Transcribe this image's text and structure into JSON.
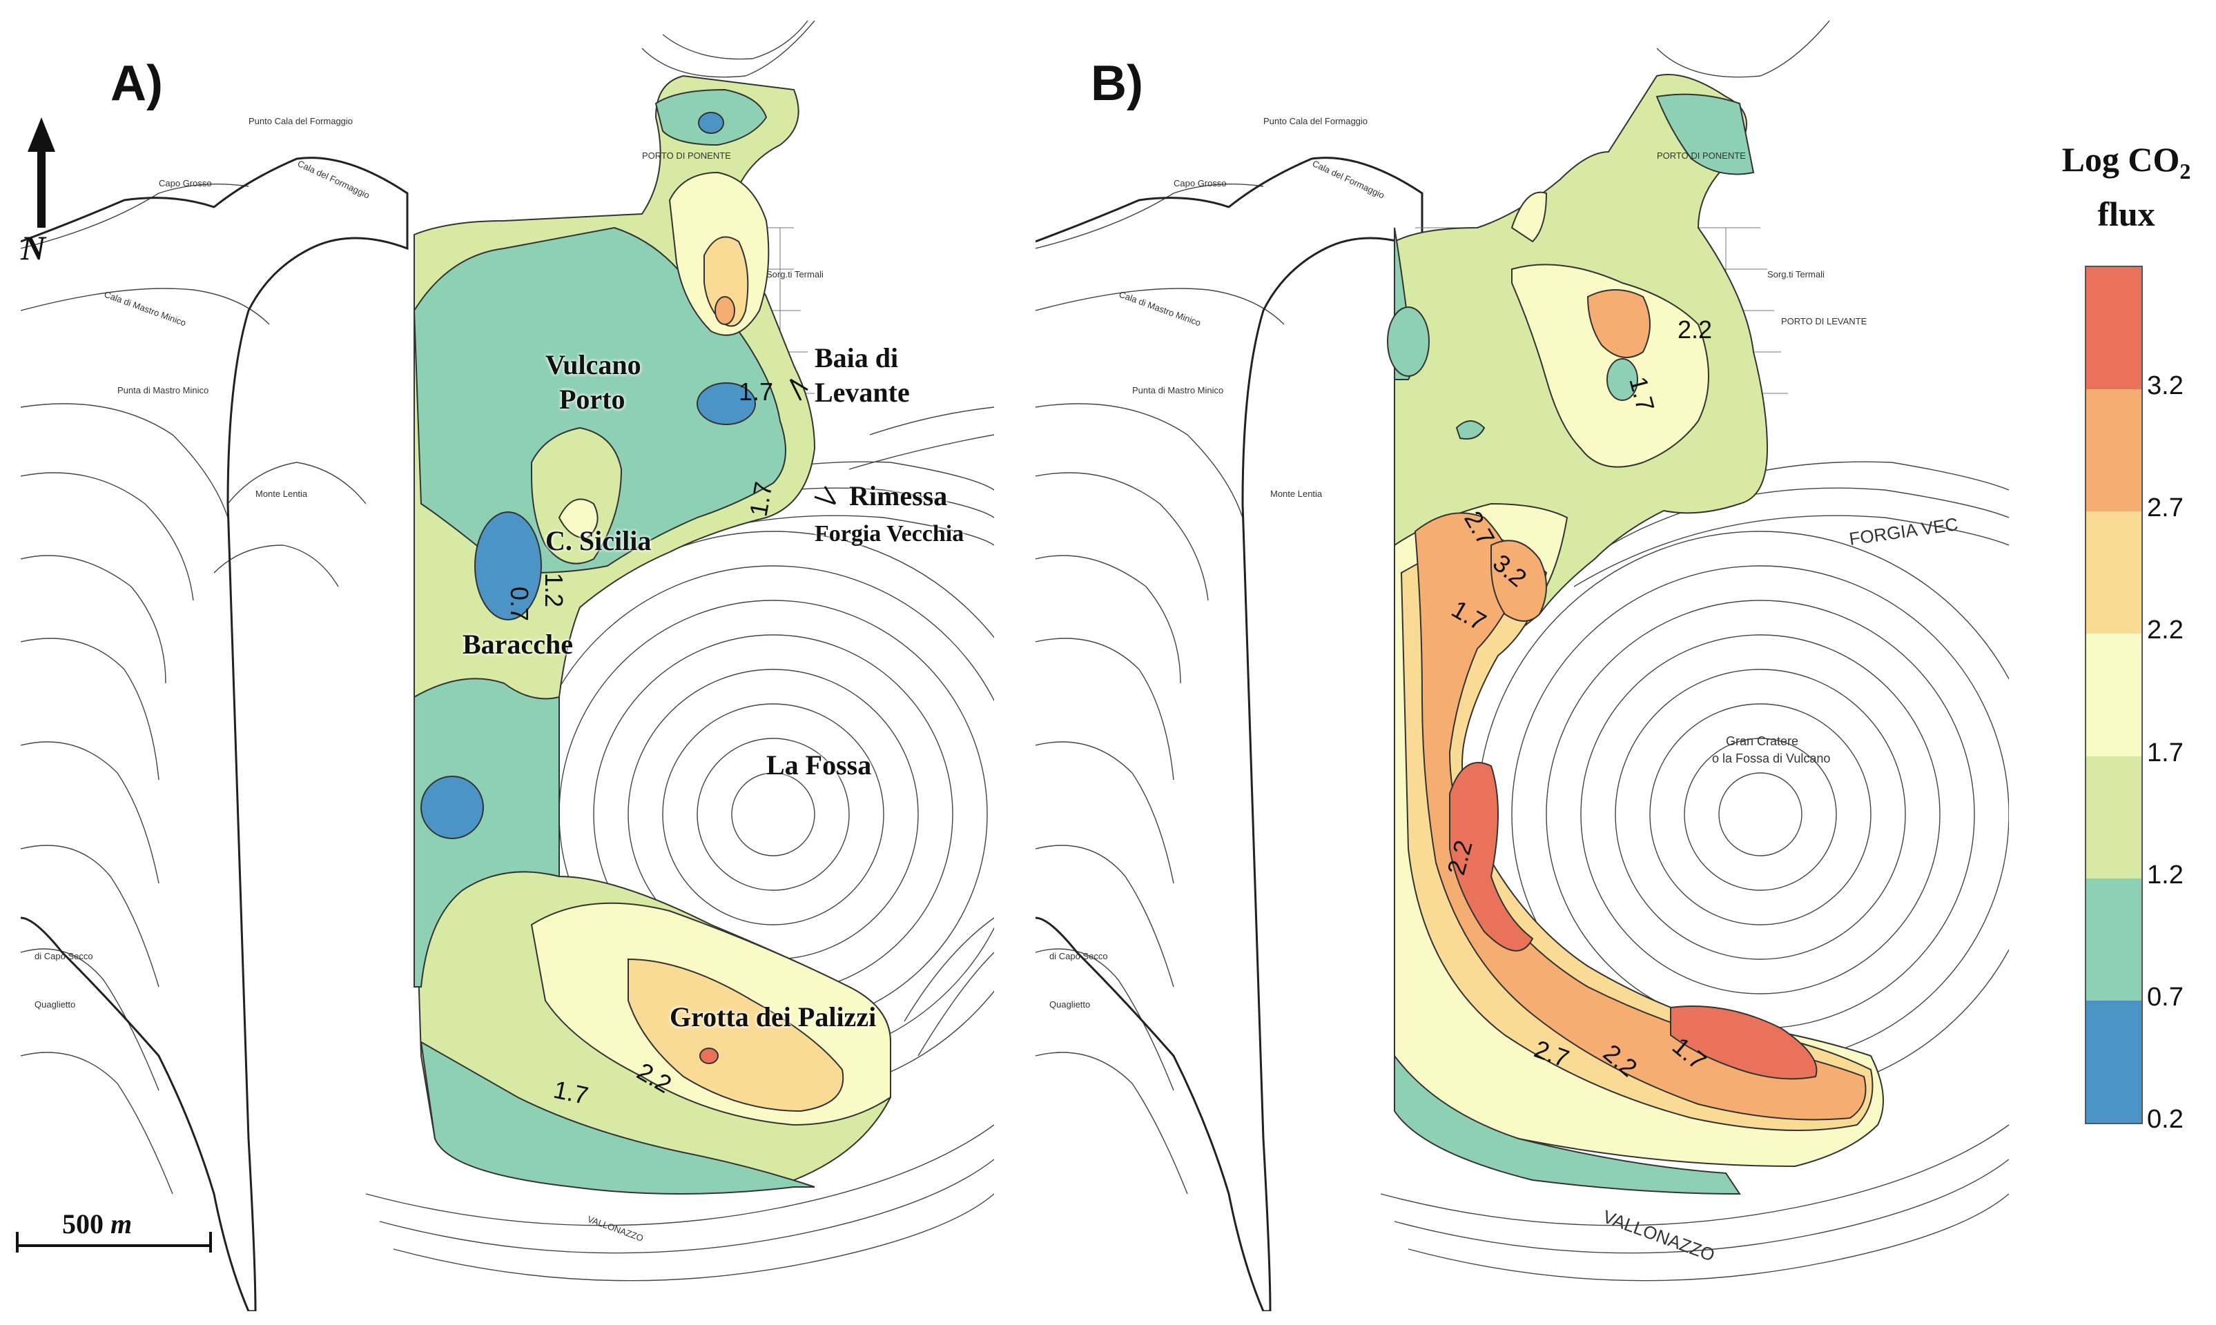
{
  "panels": {
    "a": {
      "label": "A)"
    },
    "b": {
      "label": "B)"
    }
  },
  "places": {
    "vulcano_porto_1": "Vulcano",
    "vulcano_porto_2": "Porto",
    "baia_1": "Baia di",
    "baia_2": "Levante",
    "rimessa": "Rimessa",
    "forgia": "Forgia Vecchia",
    "c_sicilia": "C. Sicilia",
    "baracche": "Baracche",
    "la_fossa": "La Fossa",
    "grotta": "Grotta dei Palizzi"
  },
  "north": {
    "label": "N"
  },
  "scale": {
    "label": "500",
    "unit": "m"
  },
  "legend": {
    "title_line1": "Log CO",
    "title_sub": "2",
    "title_line2": "flux",
    "ticks": [
      "3.2",
      "2.7",
      "2.2",
      "1.7",
      "1.2",
      "0.7",
      "0.2"
    ],
    "colors": [
      "#e9735a",
      "#f6ad72",
      "#f9db96",
      "#fafac6",
      "#d6eaa3",
      "#8ed0b4",
      "#4c94c6"
    ]
  },
  "contour_labels": {
    "a": [
      "1.7",
      "2.2",
      "0.7",
      "1.2",
      "1.7",
      "1.7",
      "1.2"
    ],
    "b": [
      "1.7",
      "2.2",
      "2.7",
      "3.2",
      "1.7",
      "2.2",
      "2.7",
      "2.2",
      "1.7"
    ]
  },
  "map_text": {
    "punto_cala": "Punto Cala del Formaggio",
    "cala_formaggio": "Cala del Formaggio",
    "capo_grosso": "Capo Grosso",
    "porto_ponente": "PORTO DI PONENTE",
    "sorgenti": "Sorg.ti Termali",
    "cala_mastro": "Cala di Mastro Minico",
    "punta_mastro": "Punta di Mastro Minico",
    "monte_lentia": "Monte Lentia",
    "gran_cratere_1": "Gran Cratere",
    "gran_cratere_2": "o la Fossa di Vulcano",
    "porto_levante": "PORTO DI LEVANTE",
    "quaglietto": "Quaglietto",
    "capo_secco": "di Capo Secco",
    "forgia_v": "FORGIA VEC",
    "vallonazzo": "VALLONAZZO"
  }
}
